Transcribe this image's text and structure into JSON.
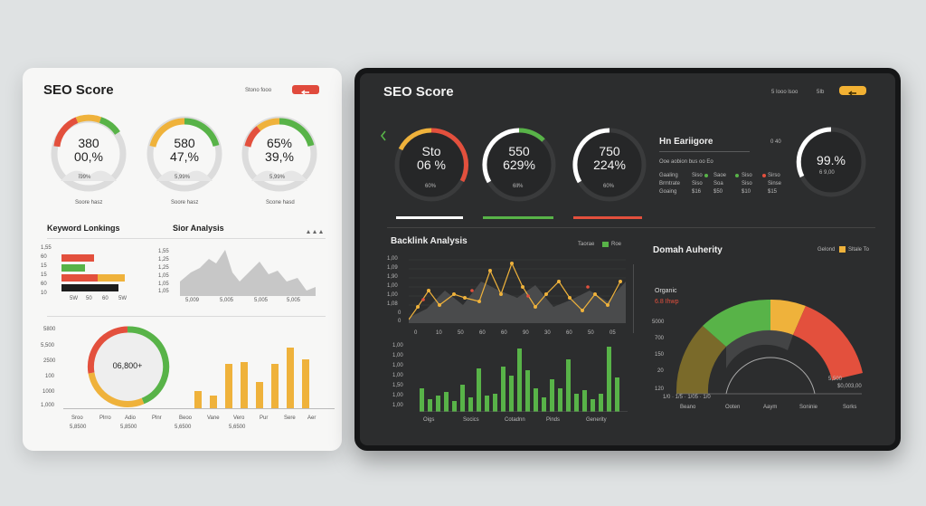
{
  "light": {
    "title": "SEO Score",
    "header_link": "Stono fooo",
    "gauges": [
      {
        "value": "380",
        "sub": "00,%",
        "label": "ΐ99%",
        "caption": "Soore hasz"
      },
      {
        "value": "580",
        "sub": "47,%",
        "label": "5,99%",
        "caption": "Soore hasz"
      },
      {
        "value": "65%",
        "sub": "39,%",
        "label": "5,99%",
        "caption": "Scone hasd"
      }
    ],
    "keyword_title": "Keyword Lonkings",
    "site_analysis_title": "Sior Analysis",
    "keyword_ticks": [
      "1,55",
      "60",
      "15",
      "15",
      "60",
      "10"
    ],
    "keyword_bar_labels": [
      "5W",
      "50",
      "60",
      "5W"
    ],
    "analysis_ticks": [
      "1,55",
      "1,25",
      "1,25",
      "1,05",
      "1,05",
      "1,05"
    ],
    "analysis_x_labels": [
      "5,009",
      "5,005",
      "5,005",
      "5,005"
    ],
    "donut_center": "06,800+",
    "bottom_y_ticks": [
      "5800",
      "5,500",
      "2500",
      "100",
      "1000",
      "1,000"
    ],
    "bottom_x_labels": [
      "Sroo",
      "Plrro",
      "Adio",
      "Plnr",
      "Beoo",
      "Vane",
      "Vero",
      "Pur",
      "Sere",
      "Aer"
    ],
    "bottom_x_values": [
      "5,8500",
      "5,8500",
      "5,6500",
      "5,6500"
    ]
  },
  "dark": {
    "title": "SEO Score",
    "header_link": "5 Iooo lsoo",
    "header_value": "5Ib",
    "gauges": [
      {
        "value": "Sto",
        "sub": "06 %",
        "label": "60%"
      },
      {
        "value": "550",
        "sub": "629%",
        "label": "6ll%"
      },
      {
        "value": "750",
        "sub": "224%",
        "label": "60%"
      }
    ],
    "eng_title": "Hn Eariigore",
    "eng_value": "0 40",
    "eng_sub": "Ooe aobion bus oo Eo",
    "eng_rows": [
      [
        "Gaaling",
        "Siso",
        "Saoe",
        "Siso",
        "Sirso"
      ],
      [
        "Brmtrate",
        "Siso",
        "Soa",
        "Siso",
        "Sinse"
      ],
      [
        "Goaing",
        "$16",
        "$50",
        "$10",
        "$15"
      ]
    ],
    "big_gauge_value": "99.%",
    "big_gauge_label": "6 9,00",
    "backlink_title": "Backlink Analysis",
    "backlink_legend": [
      "Taorae",
      "Roe"
    ],
    "backlink_y_top": [
      "1,00",
      "1,09",
      "1,90",
      "1,00",
      "1,00",
      "1,08",
      "0",
      "0"
    ],
    "backlink_x_top": [
      "0",
      "10",
      "50",
      "60",
      "60",
      "90",
      "30",
      "60",
      "50",
      "05"
    ],
    "backlink_y_bottom": [
      "1,00",
      "1,00",
      "1,00",
      "1,00",
      "1,50",
      "1,00",
      "1,00"
    ],
    "backlink_x_bottom": [
      "Oigs",
      "Socics",
      "Cotadnn",
      "Pinds",
      "Generity"
    ],
    "domain_title": "Domah Auherity",
    "domain_legend": [
      "Gelond",
      "Sltale To"
    ],
    "domain_label_1": "Organic",
    "domain_label_2": "6.8 Ihwp",
    "domain_y": [
      "5000",
      "700",
      "150",
      "20",
      "120"
    ],
    "domain_x": [
      "Beano",
      "Ooten",
      "Aaym",
      "Soninie",
      "Sorks"
    ],
    "domain_val_1": "5,500",
    "domain_val_2": "$0,003,00",
    "colors": {
      "green": "#58b348",
      "yellow": "#efb23b",
      "red": "#e3503d",
      "gray_light": "#dcdcdc",
      "dark_bg": "#2c2d2e"
    }
  }
}
